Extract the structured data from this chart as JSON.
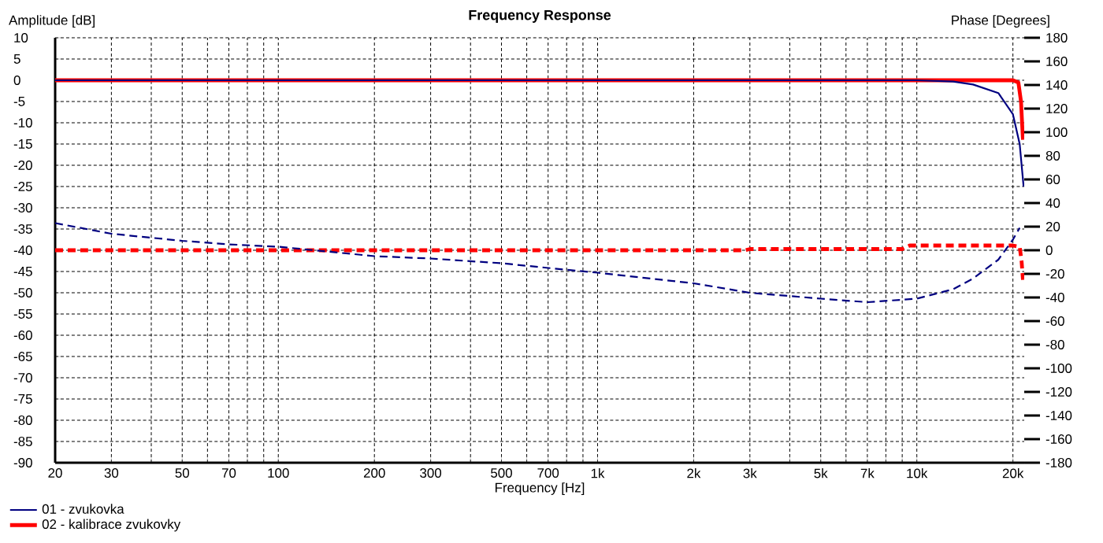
{
  "chart_data": {
    "type": "line",
    "title": "Frequency Response",
    "xlabel": "Frequency [Hz]",
    "ylabel": "Amplitude [dB]",
    "y2label": "Phase [Degrees]",
    "log": "x",
    "grid": true,
    "legend": "bottom left",
    "marker": "none",
    "xlim": [
      20,
      21700
    ],
    "xticks": [
      20,
      30,
      {
        "value": 40,
        "label": null
      },
      50,
      {
        "value": 60,
        "label": null
      },
      70,
      {
        "value": 80,
        "label": null
      },
      {
        "value": 90,
        "label": null
      },
      100,
      200,
      300,
      {
        "value": 400,
        "label": null
      },
      500,
      {
        "value": 600,
        "label": null
      },
      700,
      {
        "value": 800,
        "label": null
      },
      {
        "value": 900,
        "label": null
      },
      {
        "value": 1000,
        "label": "1k"
      },
      {
        "value": 2000,
        "label": "2k"
      },
      {
        "value": 3000,
        "label": "3k"
      },
      {
        "value": 4000,
        "label": null
      },
      {
        "value": 5000,
        "label": "5k"
      },
      {
        "value": 6000,
        "label": null
      },
      {
        "value": 7000,
        "label": "7k"
      },
      {
        "value": 8000,
        "label": null
      },
      {
        "value": 9000,
        "label": null
      },
      {
        "value": 10000,
        "label": "10k"
      },
      {
        "value": 20000,
        "label": "20k"
      }
    ],
    "ylim": [
      -90,
      10
    ],
    "yticks": [
      10,
      5,
      0,
      -5,
      -10,
      -15,
      -20,
      -25,
      -30,
      -35,
      -40,
      -45,
      -50,
      -55,
      -60,
      -65,
      -70,
      -75,
      -80,
      -85,
      -90
    ],
    "y2lim": [
      -180,
      180
    ],
    "y2ticks": [
      180,
      160,
      140,
      120,
      100,
      80,
      60,
      40,
      20,
      0,
      -20,
      -40,
      -60,
      -80,
      -100,
      -120,
      -140,
      -160,
      -180
    ],
    "series": [
      {
        "name": "01 - zvukovka",
        "color": "#000080",
        "line_style": "solid",
        "x": [
          20,
          100,
          1000,
          5000,
          10000,
          13000,
          15000,
          18000,
          20000,
          21000,
          21600
        ],
        "values": [
          0,
          0,
          0,
          0,
          0,
          -0.3,
          -1,
          -3,
          -8,
          -15,
          -25
        ]
      },
      {
        "name": "02 - kalibrace zvukovky",
        "color": "#ff0000",
        "line_style": "solid",
        "x": [
          20,
          1000,
          10000,
          20000,
          20800,
          21200,
          21500
        ],
        "values": [
          0,
          0,
          0,
          0,
          -0.5,
          -5,
          -14
        ]
      },
      {
        "color": "#000080",
        "line_style": "dashed",
        "axis": "y2",
        "x": [
          20,
          30,
          50,
          70,
          100,
          200,
          300,
          500,
          700,
          1000,
          2000,
          3000,
          5000,
          7000,
          10000,
          13000,
          15000,
          18000,
          20000,
          21000
        ],
        "values": [
          23,
          14,
          8,
          5,
          3,
          -5,
          -7,
          -11,
          -15,
          -19,
          -28,
          -36,
          -41,
          -44,
          -41,
          -33,
          -24,
          -8,
          9,
          19
        ]
      },
      {
        "color": "#ff0000",
        "line_style": "dashed",
        "axis": "y2",
        "x": [
          20,
          100,
          1000,
          2900,
          3000,
          9000,
          9500,
          20000,
          21000,
          21300,
          21500
        ],
        "values": [
          0,
          0,
          0,
          0,
          1,
          1,
          4,
          4,
          3,
          -10,
          -25
        ]
      }
    ]
  }
}
